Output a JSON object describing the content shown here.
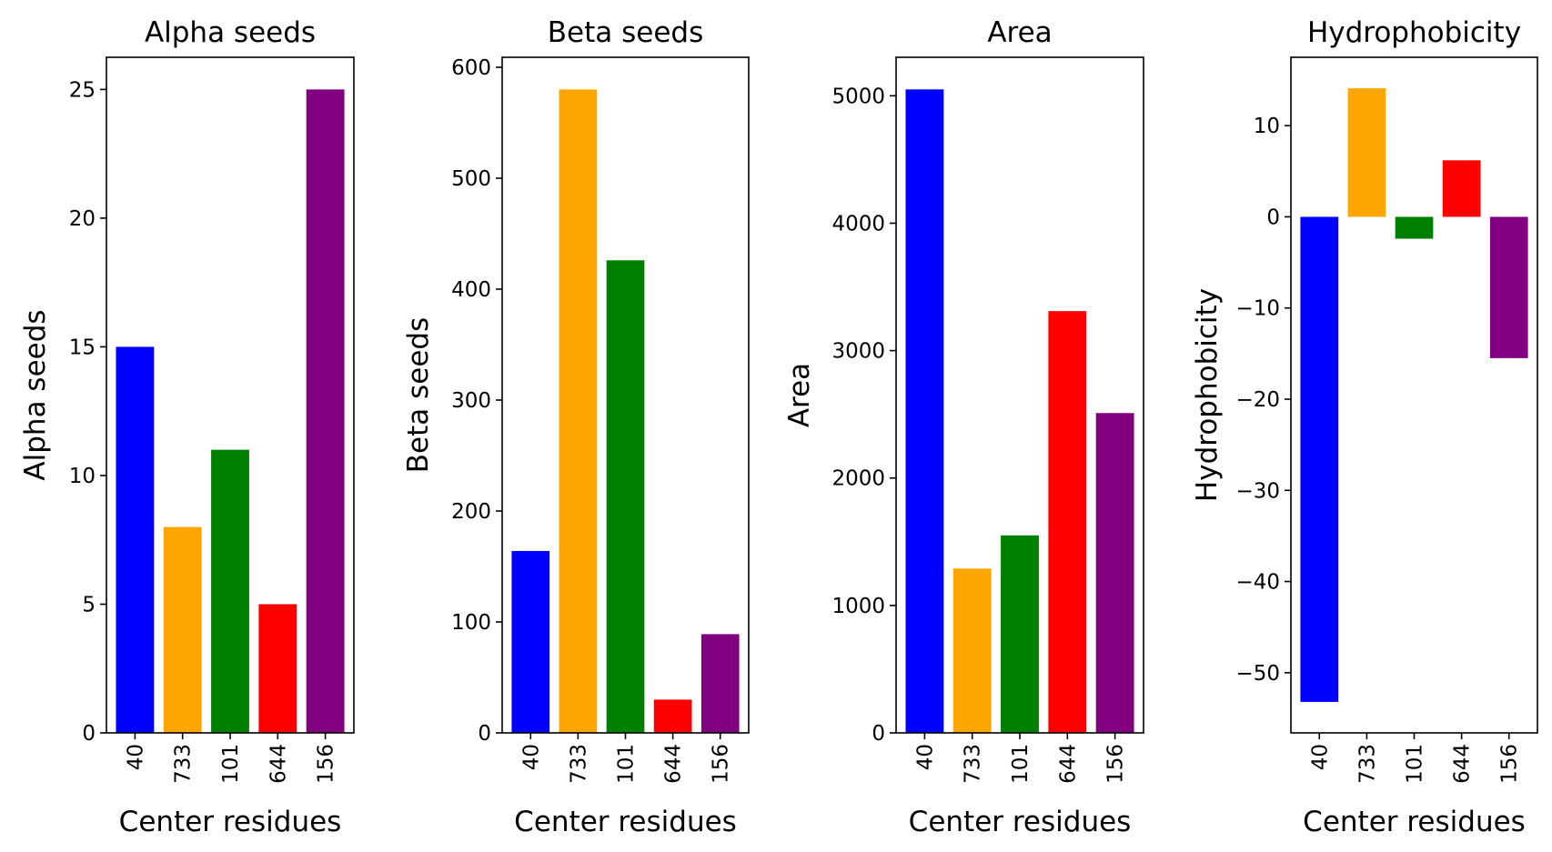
{
  "chart_data": [
    {
      "type": "bar",
      "title": "Alpha seeds",
      "xlabel": "Center residues",
      "ylabel": "Alpha seeds",
      "categories": [
        "40",
        "733",
        "101",
        "644",
        "156"
      ],
      "values": [
        15,
        8,
        11,
        5,
        25
      ],
      "colors": [
        "#0000ff",
        "#ffa500",
        "#008000",
        "#ff0000",
        "#800080"
      ],
      "ylim": [
        0,
        26.25
      ],
      "yticks": [
        0,
        5,
        10,
        15,
        20,
        25
      ],
      "ytick_labels": [
        "0",
        "5",
        "10",
        "15",
        "20",
        "25"
      ]
    },
    {
      "type": "bar",
      "title": "Beta seeds",
      "xlabel": "Center residues",
      "ylabel": "Beta seeds",
      "categories": [
        "40",
        "733",
        "101",
        "644",
        "156"
      ],
      "values": [
        164,
        580,
        426,
        30,
        89
      ],
      "colors": [
        "#0000ff",
        "#ffa500",
        "#008000",
        "#ff0000",
        "#800080"
      ],
      "ylim": [
        0,
        609
      ],
      "yticks": [
        0,
        100,
        200,
        300,
        400,
        500,
        600
      ],
      "ytick_labels": [
        "0",
        "100",
        "200",
        "300",
        "400",
        "500",
        "600"
      ]
    },
    {
      "type": "bar",
      "title": "Area",
      "xlabel": "Center residues",
      "ylabel": "Area",
      "categories": [
        "40",
        "733",
        "101",
        "644",
        "156"
      ],
      "values": [
        5050,
        1290,
        1550,
        3310,
        2510
      ],
      "colors": [
        "#0000ff",
        "#ffa500",
        "#008000",
        "#ff0000",
        "#800080"
      ],
      "ylim": [
        0,
        5302
      ],
      "yticks": [
        0,
        1000,
        2000,
        3000,
        4000,
        5000
      ],
      "ytick_labels": [
        "0",
        "1000",
        "2000",
        "3000",
        "4000",
        "5000"
      ]
    },
    {
      "type": "bar",
      "title": "Hydrophobicity",
      "xlabel": "Center residues",
      "ylabel": "Hydrophobicity",
      "categories": [
        "40",
        "733",
        "101",
        "644",
        "156"
      ],
      "values": [
        -53.2,
        14.1,
        -2.4,
        6.2,
        -15.5
      ],
      "colors": [
        "#0000ff",
        "#ffa500",
        "#008000",
        "#ff0000",
        "#800080"
      ],
      "ylim": [
        -56.6,
        17.5
      ],
      "yticks": [
        -50,
        -40,
        -30,
        -20,
        -10,
        0,
        10
      ],
      "ytick_labels": [
        "−50",
        "−40",
        "−30",
        "−20",
        "−10",
        "0",
        "10"
      ]
    }
  ]
}
